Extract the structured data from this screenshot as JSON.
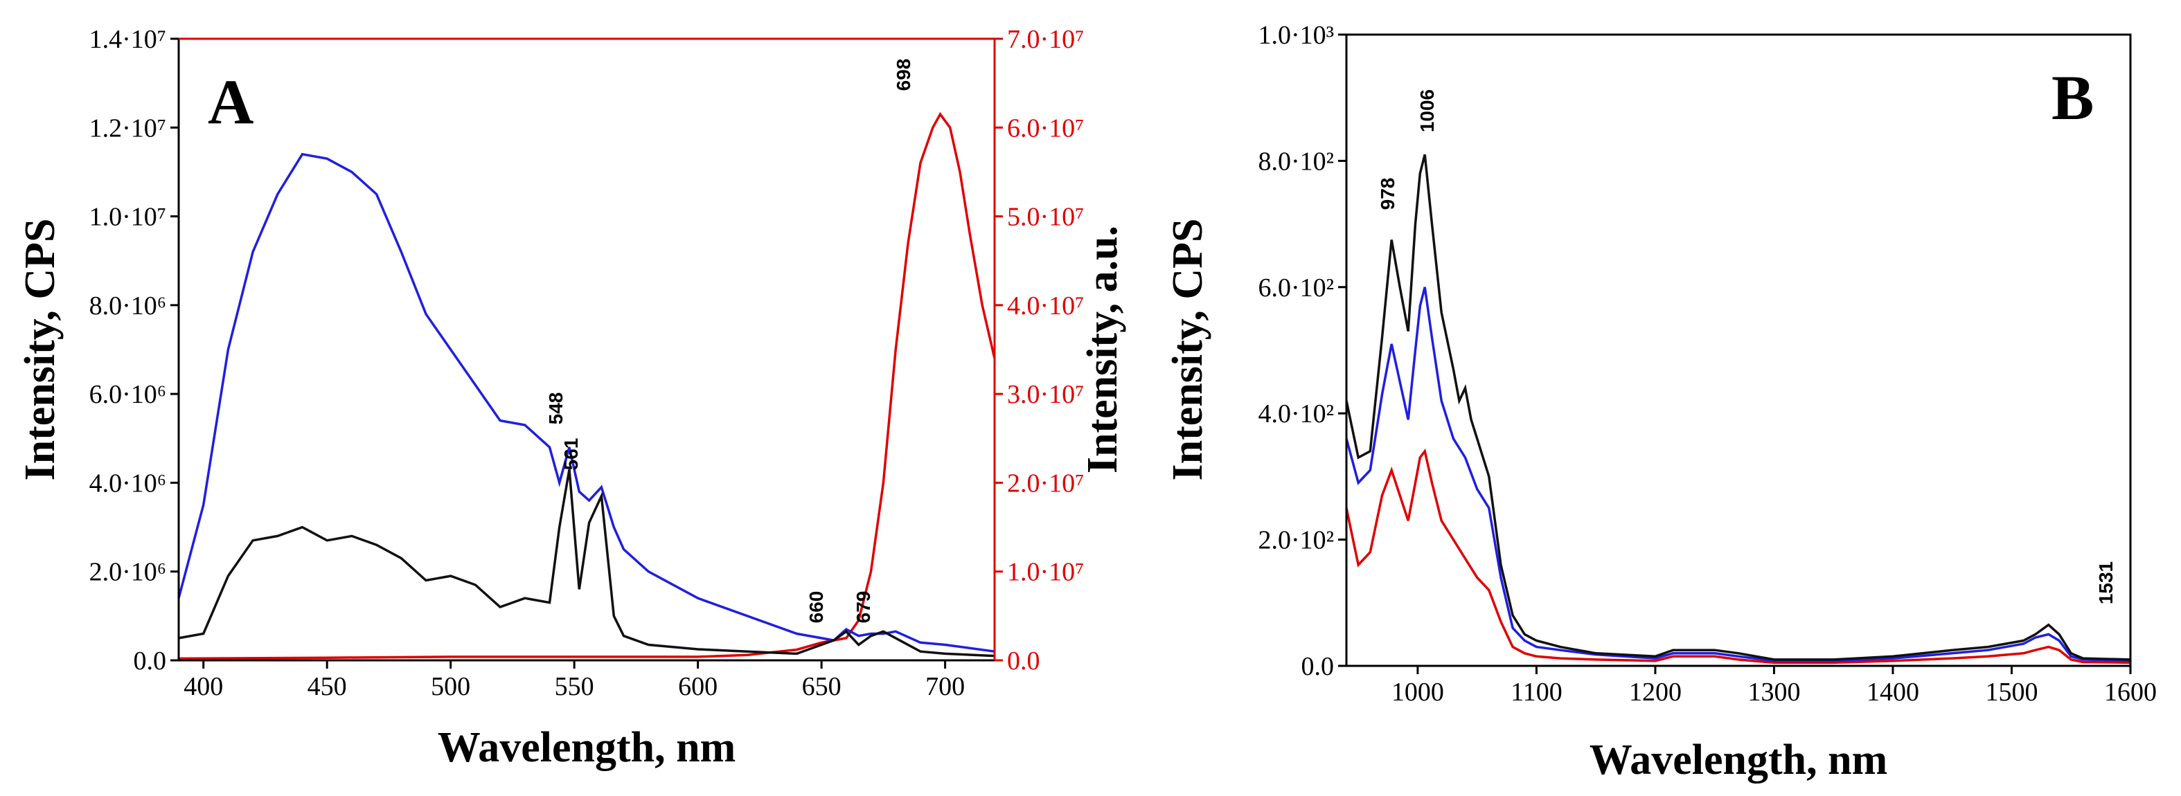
{
  "chart_data": [
    {
      "type": "line",
      "panel_label": "A",
      "xlabel": "Wavelength, nm",
      "ylabel": "Intensity, CPS",
      "y2label": "Intensity, a.u.",
      "xlim": [
        390,
        720
      ],
      "ylim": [
        0,
        14000000
      ],
      "y2lim": [
        0,
        70000000
      ],
      "x_ticks": [
        400,
        450,
        500,
        550,
        600,
        650,
        700
      ],
      "y_tick_labels": [
        "0.0",
        "2.0·10⁶",
        "4.0·10⁶",
        "6.0·10⁶",
        "8.0·10⁶",
        "1.0·10⁷",
        "1.2·10⁷",
        "1.4·10⁷"
      ],
      "y2_tick_labels": [
        "0.0",
        "1.0·10⁷",
        "2.0·10⁷",
        "3.0·10⁷",
        "4.0·10⁷",
        "5.0·10⁷",
        "6.0·10⁷",
        "7.0·10⁷"
      ],
      "peak_labels": [
        "548",
        "561",
        "660",
        "679",
        "698"
      ],
      "series": [
        {
          "name": "blue",
          "color": "#1f1fe0",
          "axis": "left",
          "x": [
            390,
            400,
            410,
            420,
            430,
            440,
            450,
            460,
            470,
            480,
            490,
            500,
            510,
            520,
            530,
            540,
            544,
            548,
            552,
            556,
            561,
            566,
            570,
            580,
            600,
            620,
            640,
            650,
            655,
            660,
            665,
            670,
            675,
            680,
            690,
            700,
            720
          ],
          "values": [
            1400000,
            3500000,
            7000000,
            9200000,
            10500000,
            11400000,
            11300000,
            11000000,
            10500000,
            9200000,
            7800000,
            7000000,
            6200000,
            5400000,
            5300000,
            4800000,
            4000000,
            4800000,
            3800000,
            3600000,
            3900000,
            3000000,
            2500000,
            2000000,
            1400000,
            1000000,
            600000,
            500000,
            450000,
            700000,
            550000,
            600000,
            600000,
            650000,
            400000,
            350000,
            200000
          ]
        },
        {
          "name": "black",
          "color": "#111111",
          "axis": "left",
          "x": [
            390,
            400,
            410,
            420,
            430,
            440,
            450,
            460,
            470,
            480,
            490,
            500,
            510,
            520,
            525,
            530,
            540,
            544,
            548,
            552,
            556,
            561,
            566,
            570,
            580,
            600,
            620,
            640,
            650,
            655,
            660,
            665,
            670,
            675,
            680,
            690,
            700,
            720
          ],
          "values": [
            500000,
            600000,
            1900000,
            2700000,
            2800000,
            3000000,
            2700000,
            2800000,
            2600000,
            2300000,
            1800000,
            1900000,
            1700000,
            1200000,
            1300000,
            1400000,
            1300000,
            3000000,
            4300000,
            1600000,
            3100000,
            3700000,
            1000000,
            550000,
            350000,
            250000,
            200000,
            150000,
            350000,
            450000,
            650000,
            350000,
            550000,
            650000,
            500000,
            200000,
            150000,
            100000
          ]
        },
        {
          "name": "red",
          "color": "#e00000",
          "axis": "right",
          "x": [
            390,
            450,
            500,
            550,
            600,
            620,
            640,
            650,
            660,
            665,
            670,
            675,
            680,
            685,
            690,
            695,
            698,
            702,
            706,
            710,
            715,
            720
          ],
          "values": [
            200000,
            300000,
            400000,
            400000,
            400000,
            600000,
            1200000,
            2000000,
            2500000,
            4500000,
            10000000,
            20000000,
            35000000,
            47000000,
            56000000,
            60000000,
            61500000,
            60000000,
            55000000,
            48000000,
            40000000,
            34000000
          ]
        }
      ]
    },
    {
      "type": "line",
      "panel_label": "B",
      "xlabel": "Wavelength, nm",
      "ylabel": "Intensity, CPS",
      "xlim": [
        940,
        1600
      ],
      "ylim": [
        0,
        1000
      ],
      "x_ticks": [
        1000,
        1100,
        1200,
        1300,
        1400,
        1500,
        1600
      ],
      "y_tick_labels": [
        "0.0",
        "2.0·10²",
        "4.0·10²",
        "6.0·10²",
        "8.0·10²",
        "1.0·10³"
      ],
      "peak_labels": [
        "978",
        "1006",
        "1531"
      ],
      "series": [
        {
          "name": "black",
          "color": "#111111",
          "x": [
            940,
            950,
            960,
            970,
            978,
            985,
            992,
            998,
            1002,
            1006,
            1012,
            1020,
            1030,
            1035,
            1040,
            1045,
            1050,
            1060,
            1070,
            1080,
            1090,
            1100,
            1120,
            1150,
            1200,
            1215,
            1250,
            1270,
            1300,
            1350,
            1400,
            1450,
            1480,
            1510,
            1520,
            1531,
            1540,
            1550,
            1560,
            1600
          ],
          "values": [
            420,
            330,
            340,
            520,
            675,
            600,
            530,
            700,
            780,
            810,
            700,
            560,
            470,
            420,
            440,
            390,
            360,
            300,
            160,
            80,
            50,
            40,
            30,
            20,
            15,
            25,
            25,
            20,
            10,
            10,
            15,
            25,
            30,
            40,
            50,
            65,
            50,
            20,
            12,
            10
          ]
        },
        {
          "name": "blue",
          "color": "#1f1fe0",
          "x": [
            940,
            950,
            960,
            970,
            978,
            985,
            992,
            998,
            1002,
            1006,
            1012,
            1020,
            1030,
            1040,
            1050,
            1060,
            1070,
            1080,
            1090,
            1100,
            1120,
            1150,
            1200,
            1215,
            1250,
            1270,
            1300,
            1350,
            1400,
            1450,
            1480,
            1510,
            1520,
            1531,
            1540,
            1550,
            1560,
            1600
          ],
          "values": [
            360,
            290,
            310,
            430,
            510,
            450,
            390,
            500,
            570,
            600,
            520,
            420,
            360,
            330,
            280,
            250,
            140,
            60,
            40,
            30,
            25,
            18,
            12,
            20,
            20,
            15,
            8,
            8,
            12,
            20,
            25,
            35,
            45,
            50,
            40,
            15,
            10,
            8
          ]
        },
        {
          "name": "red",
          "color": "#e00000",
          "x": [
            940,
            950,
            960,
            970,
            978,
            985,
            992,
            998,
            1002,
            1006,
            1012,
            1020,
            1030,
            1040,
            1050,
            1060,
            1070,
            1080,
            1090,
            1100,
            1120,
            1150,
            1200,
            1215,
            1250,
            1270,
            1300,
            1350,
            1400,
            1450,
            1480,
            1510,
            1520,
            1531,
            1540,
            1550,
            1560,
            1600
          ],
          "values": [
            250,
            160,
            180,
            270,
            310,
            270,
            230,
            290,
            330,
            340,
            290,
            230,
            200,
            170,
            140,
            120,
            70,
            30,
            20,
            15,
            12,
            10,
            8,
            15,
            15,
            10,
            5,
            5,
            8,
            12,
            15,
            20,
            25,
            30,
            25,
            10,
            6,
            5
          ]
        }
      ]
    }
  ]
}
